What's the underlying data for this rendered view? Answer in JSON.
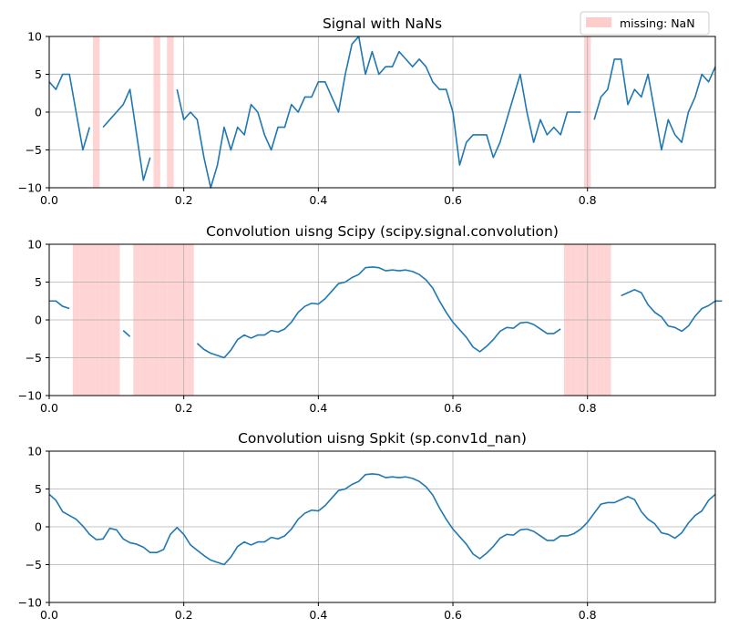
{
  "chart_data": [
    {
      "type": "line",
      "title": "Signal with NaNs",
      "xlim": [
        0,
        0.99
      ],
      "ylim": [
        -10,
        10
      ],
      "xticks": [
        "0.0",
        "0.2",
        "0.4",
        "0.6",
        "0.8"
      ],
      "yticks": [
        "10",
        "5",
        "0",
        "−5",
        "−10"
      ],
      "grid": true,
      "line_color": "#1f77b4",
      "nan_color": "#ffcccc",
      "legend": {
        "placement": "top-right",
        "label": "missing: NaN"
      },
      "nan_x": [
        0.07,
        0.16,
        0.18,
        0.8
      ],
      "series": [
        {
          "y": [
            4,
            3,
            5,
            5,
            0,
            -5,
            -2,
            null,
            -2,
            -1,
            0,
            1,
            3,
            -3,
            -9,
            -6,
            null,
            null,
            null,
            3,
            -1,
            0,
            -1,
            -6,
            -10,
            -7,
            -2,
            -5,
            -2,
            -3,
            1,
            0,
            -3,
            -5,
            -2,
            -2,
            1,
            0,
            2,
            2,
            4,
            4,
            2,
            0,
            5,
            9,
            10,
            5,
            8,
            5,
            6,
            6,
            8,
            7,
            6,
            7,
            6,
            4,
            3,
            3,
            0,
            -7,
            -4,
            -3,
            -3,
            -3,
            -6,
            -4,
            -1,
            2,
            5,
            0,
            -4,
            -1,
            -3,
            -2,
            -3,
            0,
            0,
            0,
            null,
            -1,
            2,
            3,
            7,
            7,
            1,
            3,
            2,
            5,
            0,
            -5,
            -1,
            -3,
            -4,
            0,
            2,
            5,
            4,
            6
          ]
        }
      ]
    },
    {
      "type": "line",
      "title": "Convolution uisng Scipy (scipy.signal.convolution)",
      "xlim": [
        0,
        0.99
      ],
      "ylim": [
        -10,
        10
      ],
      "xticks": [
        "0.0",
        "0.2",
        "0.4",
        "0.6",
        "0.8"
      ],
      "yticks": [
        "10",
        "5",
        "0",
        "−5",
        "−10"
      ],
      "grid": true,
      "line_color": "#1f77b4",
      "nan_color": "#ffcccc",
      "nan_x": [
        0.04,
        0.05,
        0.06,
        0.07,
        0.08,
        0.09,
        0.1,
        0.13,
        0.14,
        0.15,
        0.16,
        0.17,
        0.18,
        0.19,
        0.2,
        0.21,
        0.77,
        0.78,
        0.79,
        0.8,
        0.81,
        0.82,
        0.83
      ],
      "series": [
        {
          "y": [
            2.5,
            2.5,
            1.8,
            1.5,
            null,
            null,
            null,
            null,
            null,
            null,
            null,
            -1.4,
            -2.2,
            null,
            null,
            null,
            null,
            null,
            null,
            null,
            null,
            null,
            -3.1,
            -3.9,
            -4.4,
            -4.7,
            -5.0,
            -4.0,
            -2.6,
            -2.0,
            -2.4,
            -2.0,
            -2.0,
            -1.4,
            -1.6,
            -1.2,
            -0.3,
            1.0,
            1.8,
            2.2,
            2.1,
            2.8,
            3.8,
            4.8,
            5.0,
            5.6,
            6.0,
            6.9,
            7.0,
            6.9,
            6.5,
            6.6,
            6.5,
            6.6,
            6.4,
            6.0,
            5.3,
            4.2,
            2.5,
            1.0,
            -0.3,
            -1.3,
            -2.3,
            -3.6,
            -4.2,
            -3.5,
            -2.6,
            -1.5,
            -1.0,
            -1.1,
            -0.4,
            -0.3,
            -0.6,
            -1.2,
            -1.8,
            -1.8,
            -1.2,
            null,
            null,
            null,
            null,
            null,
            null,
            null,
            null,
            3.2,
            3.6,
            4.0,
            3.6,
            2.0,
            1.0,
            0.4,
            -0.8,
            -1.0,
            -1.5,
            -0.8,
            0.5,
            1.5,
            1.9,
            2.5,
            2.5
          ]
        }
      ]
    },
    {
      "type": "line",
      "title": "Convolution uisng Spkit (sp.conv1d_nan)",
      "xlim": [
        0,
        0.99
      ],
      "ylim": [
        -10,
        10
      ],
      "xticks": [
        "0.0",
        "0.2",
        "0.4",
        "0.6",
        "0.8"
      ],
      "yticks": [
        "10",
        "5",
        "0",
        "−5",
        "−10"
      ],
      "grid": true,
      "line_color": "#1f77b4",
      "series": [
        {
          "y": [
            4.3,
            3.5,
            2.0,
            1.5,
            1.0,
            0.1,
            -1.0,
            -1.7,
            -1.6,
            -0.2,
            -0.4,
            -1.6,
            -2.1,
            -2.3,
            -2.7,
            -3.4,
            -3.4,
            -3.0,
            -1.0,
            -0.1,
            -1.0,
            -2.4,
            -3.1,
            -3.8,
            -4.4,
            -4.7,
            -5.0,
            -4.0,
            -2.6,
            -2.0,
            -2.4,
            -2.0,
            -2.0,
            -1.4,
            -1.6,
            -1.2,
            -0.3,
            1.0,
            1.8,
            2.2,
            2.1,
            2.8,
            3.8,
            4.8,
            5.0,
            5.6,
            6.0,
            6.9,
            7.0,
            6.9,
            6.5,
            6.6,
            6.5,
            6.6,
            6.4,
            6.0,
            5.3,
            4.2,
            2.5,
            1.0,
            -0.3,
            -1.3,
            -2.3,
            -3.6,
            -4.2,
            -3.5,
            -2.6,
            -1.5,
            -1.0,
            -1.1,
            -0.4,
            -0.3,
            -0.6,
            -1.2,
            -1.8,
            -1.8,
            -1.2,
            -1.2,
            -0.9,
            -0.3,
            0.6,
            1.8,
            3.0,
            3.2,
            3.2,
            3.6,
            4.0,
            3.6,
            2.0,
            1.0,
            0.4,
            -0.8,
            -1.0,
            -1.5,
            -0.8,
            0.5,
            1.5,
            2.1,
            3.5,
            4.3
          ]
        }
      ]
    }
  ]
}
